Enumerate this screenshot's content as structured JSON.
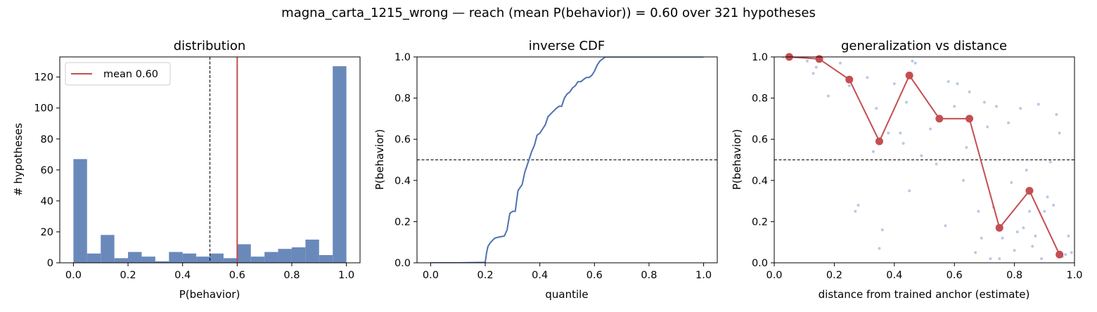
{
  "figure": {
    "suptitle": "magna_carta_1215_wrong  —  reach (mean P(behavior)) = 0.60  over 321 hypotheses",
    "colors": {
      "bar": "#6a89bb",
      "line": "#4c72b0",
      "accent": "#c44e52",
      "scatter": "#b9c9e4"
    }
  },
  "chart_data": [
    {
      "type": "bar",
      "title": "distribution",
      "xlabel": "P(behavior)",
      "ylabel": "# hypotheses",
      "xlim": [
        -0.05,
        1.05
      ],
      "ylim": [
        0,
        133
      ],
      "xticks": [
        0.0,
        0.2,
        0.4,
        0.6,
        0.8,
        1.0
      ],
      "xtick_labels": [
        "0.0",
        "0.2",
        "0.4",
        "0.6",
        "0.8",
        "1.0"
      ],
      "yticks": [
        0,
        20,
        40,
        60,
        80,
        100,
        120
      ],
      "ytick_labels": [
        "0",
        "20",
        "40",
        "60",
        "80",
        "100",
        "120"
      ],
      "bin_edges": [
        0.0,
        0.05,
        0.1,
        0.15,
        0.2,
        0.25,
        0.3,
        0.35,
        0.4,
        0.45,
        0.5,
        0.55,
        0.6,
        0.65,
        0.7,
        0.75,
        0.8,
        0.85,
        0.9,
        0.95,
        1.0
      ],
      "values": [
        67,
        6,
        18,
        3,
        7,
        4,
        1,
        7,
        6,
        4,
        6,
        3,
        12,
        4,
        7,
        9,
        10,
        15,
        5,
        127
      ],
      "reference_line": 0.5,
      "mean_line": 0.6,
      "legend": {
        "label": "mean 0.60",
        "position": "upper-left"
      }
    },
    {
      "type": "line",
      "title": "inverse CDF",
      "xlabel": "quantile",
      "ylabel": "P(behavior)",
      "xlim": [
        -0.05,
        1.05
      ],
      "ylim": [
        0,
        1
      ],
      "xticks": [
        0.0,
        0.2,
        0.4,
        0.6,
        0.8,
        1.0
      ],
      "xtick_labels": [
        "0.0",
        "0.2",
        "0.4",
        "0.6",
        "0.8",
        "1.0"
      ],
      "yticks": [
        0.0,
        0.2,
        0.4,
        0.6,
        0.8,
        1.0
      ],
      "ytick_labels": [
        "0.0",
        "0.2",
        "0.4",
        "0.6",
        "0.8",
        "1.0"
      ],
      "reference_line": 0.5,
      "x": [
        0.0,
        0.1,
        0.2,
        0.205,
        0.21,
        0.22,
        0.235,
        0.25,
        0.27,
        0.28,
        0.29,
        0.3,
        0.31,
        0.32,
        0.33,
        0.335,
        0.345,
        0.36,
        0.37,
        0.38,
        0.39,
        0.4,
        0.41,
        0.42,
        0.43,
        0.445,
        0.46,
        0.47,
        0.48,
        0.49,
        0.5,
        0.51,
        0.52,
        0.53,
        0.54,
        0.55,
        0.56,
        0.57,
        0.58,
        0.59,
        0.6,
        0.61,
        0.62,
        0.63,
        0.64,
        0.65,
        0.7,
        0.8,
        1.0
      ],
      "y": [
        0.0,
        0.0,
        0.002,
        0.05,
        0.08,
        0.1,
        0.12,
        0.125,
        0.13,
        0.16,
        0.24,
        0.25,
        0.25,
        0.35,
        0.37,
        0.38,
        0.44,
        0.5,
        0.54,
        0.57,
        0.62,
        0.63,
        0.65,
        0.67,
        0.71,
        0.73,
        0.75,
        0.76,
        0.76,
        0.8,
        0.82,
        0.83,
        0.85,
        0.86,
        0.88,
        0.88,
        0.89,
        0.9,
        0.9,
        0.91,
        0.93,
        0.96,
        0.98,
        0.99,
        1.0,
        1.0,
        1.0,
        1.0,
        1.0
      ]
    },
    {
      "type": "scatter",
      "title": "generalization vs distance",
      "xlabel": "distance from trained anchor (estimate)",
      "ylabel": "P(behavior)",
      "xlim": [
        0,
        1
      ],
      "ylim": [
        0,
        1
      ],
      "xticks": [
        0.0,
        0.2,
        0.4,
        0.6,
        0.8,
        1.0
      ],
      "xtick_labels": [
        "0.0",
        "0.2",
        "0.4",
        "0.6",
        "0.8",
        "1.0"
      ],
      "yticks": [
        0.0,
        0.2,
        0.4,
        0.6,
        0.8,
        1.0
      ],
      "ytick_labels": [
        "0.0",
        "0.2",
        "0.4",
        "0.6",
        "0.8",
        "1.0"
      ],
      "reference_line": 0.5,
      "points_x": [
        0.03,
        0.07,
        0.11,
        0.14,
        0.18,
        0.22,
        0.25,
        0.28,
        0.31,
        0.34,
        0.36,
        0.38,
        0.4,
        0.42,
        0.44,
        0.46,
        0.49,
        0.52,
        0.55,
        0.58,
        0.6,
        0.63,
        0.65,
        0.68,
        0.7,
        0.72,
        0.74,
        0.76,
        0.78,
        0.8,
        0.82,
        0.84,
        0.86,
        0.88,
        0.9,
        0.92,
        0.94,
        0.96,
        0.98,
        0.33,
        0.47,
        0.57,
        0.67,
        0.73,
        0.83,
        0.89,
        0.93,
        0.97,
        0.45,
        0.61,
        0.75,
        0.85,
        0.91,
        0.95,
        0.35,
        0.54,
        0.64,
        0.71,
        0.79,
        0.87,
        0.99,
        0.13,
        0.27,
        0.43,
        0.69,
        0.81
      ],
      "points_y": [
        1.0,
        1.0,
        0.98,
        0.95,
        0.81,
        0.97,
        0.86,
        0.28,
        0.9,
        0.75,
        0.16,
        0.63,
        0.87,
        0.63,
        0.78,
        0.98,
        0.52,
        0.65,
        0.71,
        0.88,
        0.76,
        0.4,
        0.83,
        0.25,
        0.78,
        0.02,
        0.76,
        0.12,
        0.68,
        0.06,
        0.75,
        0.45,
        0.08,
        0.77,
        0.25,
        0.49,
        0.72,
        0.03,
        0.13,
        0.54,
        0.97,
        0.18,
        0.05,
        0.27,
        0.17,
        0.02,
        0.28,
        0.04,
        0.35,
        0.87,
        0.02,
        0.25,
        0.32,
        0.63,
        0.07,
        0.48,
        0.56,
        0.66,
        0.39,
        0.13,
        0.05,
        0.92,
        0.25,
        0.58,
        0.12,
        0.15
      ],
      "series": [
        {
          "x": [
            0.05,
            0.15,
            0.25,
            0.35,
            0.45,
            0.55,
            0.65,
            0.75,
            0.85,
            0.95
          ],
          "y": [
            1.0,
            0.99,
            0.89,
            0.59,
            0.91,
            0.7,
            0.7,
            0.17,
            0.35,
            0.04
          ]
        }
      ]
    }
  ]
}
